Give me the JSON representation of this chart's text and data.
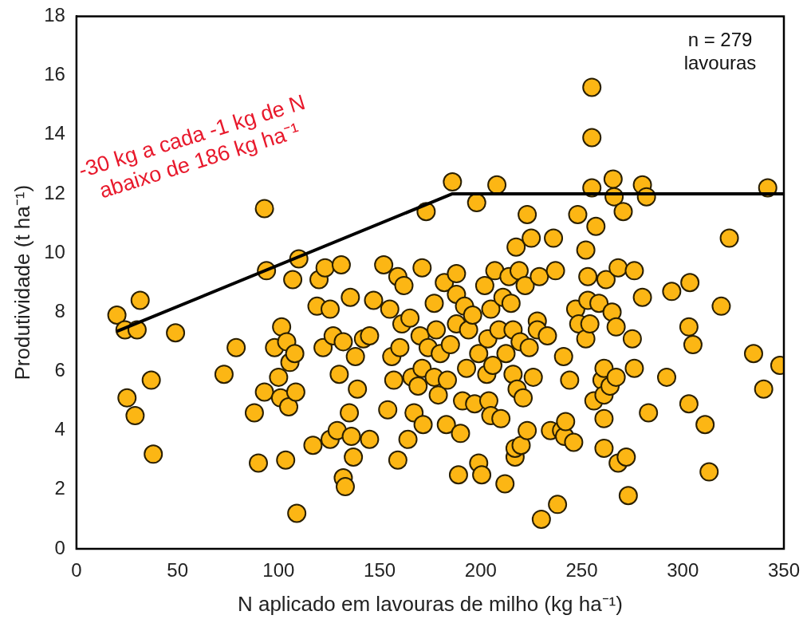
{
  "chart_data": {
    "type": "scatter",
    "xlabel": "N aplicado em lavouras de milho (kg ha⁻¹)",
    "ylabel": "Produtividade (t ha⁻¹)",
    "xlim": [
      0,
      350
    ],
    "xticks": [
      0,
      50,
      100,
      150,
      200,
      250,
      300,
      350
    ],
    "ylim": [
      0,
      18
    ],
    "yticks": [
      0,
      2,
      4,
      6,
      8,
      10,
      12,
      14,
      16,
      18
    ],
    "grid": false,
    "legend": false,
    "annotations": [
      "-30 kg a cada -1 kg de N\nabaixo de 186 kg ha⁻¹",
      "n = 279\nlavouras"
    ],
    "series": [
      {
        "type": "scatter",
        "marker": "circle",
        "color": "#fcb614",
        "x": [
          20,
          24,
          30,
          31.5,
          25,
          29,
          37,
          38,
          49,
          73,
          79,
          88,
          90,
          93,
          94,
          93,
          98,
          100,
          101,
          101.5,
          104,
          103.5,
          105,
          105.6,
          107,
          108.5,
          109,
          110,
          108,
          117,
          119,
          120,
          122,
          123,
          125.5,
          125.5,
          127,
          129,
          130,
          131,
          132,
          132,
          133,
          135,
          135.5,
          136,
          137,
          138,
          139,
          142,
          145,
          145,
          147,
          152,
          154,
          155,
          156,
          157,
          159,
          159,
          160,
          161,
          162,
          164,
          165,
          166,
          167,
          169,
          170,
          171,
          171,
          171.5,
          173,
          174,
          177,
          177,
          178,
          179,
          180,
          182,
          183,
          183.5,
          185,
          186,
          188,
          188,
          188,
          189,
          190,
          191,
          192,
          193,
          194,
          196,
          197,
          198,
          199,
          199,
          200.5,
          202,
          203,
          203.5,
          204,
          205,
          205,
          206,
          207,
          208,
          209,
          210,
          211,
          212,
          212.5,
          214,
          215,
          216,
          216,
          217,
          217,
          217.5,
          218,
          219,
          219.5,
          220,
          221,
          222,
          223,
          223,
          224,
          225,
          226,
          228,
          228,
          229,
          230,
          233,
          234.5,
          236,
          237,
          238,
          240,
          241,
          241.5,
          242,
          244,
          246,
          247,
          248,
          248.5,
          252,
          252,
          253,
          253,
          254,
          255,
          255,
          255,
          256,
          257,
          258.5,
          260,
          261,
          261,
          261,
          261,
          262,
          264,
          265,
          265.5,
          266,
          267,
          267,
          268,
          268,
          270.5,
          272,
          273,
          275,
          276,
          276,
          280,
          280,
          282,
          283,
          292,
          294.5,
          303,
          303,
          303.5,
          305,
          311,
          313,
          319,
          323,
          335,
          340,
          342,
          348
        ],
        "values": [
          7.9,
          7.4,
          7.4,
          8.4,
          5.1,
          4.5,
          5.7,
          3.2,
          7.3,
          5.9,
          6.8,
          4.6,
          2.9,
          11.5,
          9.4,
          5.3,
          6.8,
          5.8,
          5.1,
          7.5,
          7.0,
          3.0,
          4.8,
          6.3,
          9.1,
          5.3,
          1.2,
          9.8,
          6.6,
          3.5,
          8.2,
          9.1,
          6.8,
          9.5,
          8.1,
          3.7,
          7.2,
          4.0,
          5.9,
          9.6,
          7.0,
          2.4,
          2.1,
          4.6,
          8.5,
          3.8,
          3.1,
          6.5,
          5.4,
          7.1,
          7.2,
          3.7,
          8.4,
          9.6,
          4.7,
          8.1,
          6.5,
          5.7,
          9.2,
          3.0,
          6.8,
          7.6,
          8.9,
          3.7,
          7.8,
          5.8,
          4.6,
          5.5,
          7.2,
          9.5,
          6.1,
          4.2,
          11.4,
          6.8,
          8.3,
          5.8,
          7.4,
          5.2,
          6.6,
          9.0,
          4.2,
          5.7,
          6.9,
          12.4,
          8.6,
          7.6,
          9.3,
          2.5,
          3.9,
          5.0,
          8.2,
          6.1,
          7.4,
          7.9,
          4.9,
          11.7,
          6.6,
          2.9,
          2.5,
          8.9,
          5.9,
          7.1,
          5.0,
          4.5,
          8.1,
          6.2,
          9.4,
          12.3,
          7.4,
          4.4,
          8.5,
          2.2,
          6.6,
          9.2,
          8.3,
          5.9,
          7.4,
          3.1,
          3.4,
          10.2,
          5.4,
          9.4,
          7.0,
          3.5,
          5.1,
          8.9,
          4.0,
          11.3,
          6.8,
          10.5,
          5.8,
          7.7,
          7.4,
          9.2,
          1.0,
          7.2,
          4.0,
          10.5,
          9.4,
          1.5,
          4.0,
          6.5,
          3.8,
          4.3,
          5.7,
          3.6,
          8.1,
          11.3,
          7.6,
          10.1,
          7.1,
          9.2,
          8.4,
          7.6,
          15.6,
          13.9,
          12.2,
          5.0,
          10.9,
          8.3,
          5.7,
          5.2,
          3.4,
          4.4,
          6.1,
          9.1,
          5.5,
          8.0,
          12.5,
          11.9,
          7.5,
          5.8,
          9.5,
          2.9,
          11.4,
          3.1,
          1.8,
          7.1,
          9.4,
          6.1,
          8.5,
          12.3,
          11.9,
          4.6,
          5.8,
          8.7,
          7.5,
          4.9,
          9.0,
          6.9,
          4.2,
          2.6,
          8.2,
          10.5,
          6.6,
          5.4,
          12.2,
          6.2
        ]
      },
      {
        "type": "line",
        "marker": "none",
        "color": "#000000",
        "x": [
          20,
          186,
          350
        ],
        "values": [
          7.35,
          12,
          12
        ]
      }
    ]
  }
}
